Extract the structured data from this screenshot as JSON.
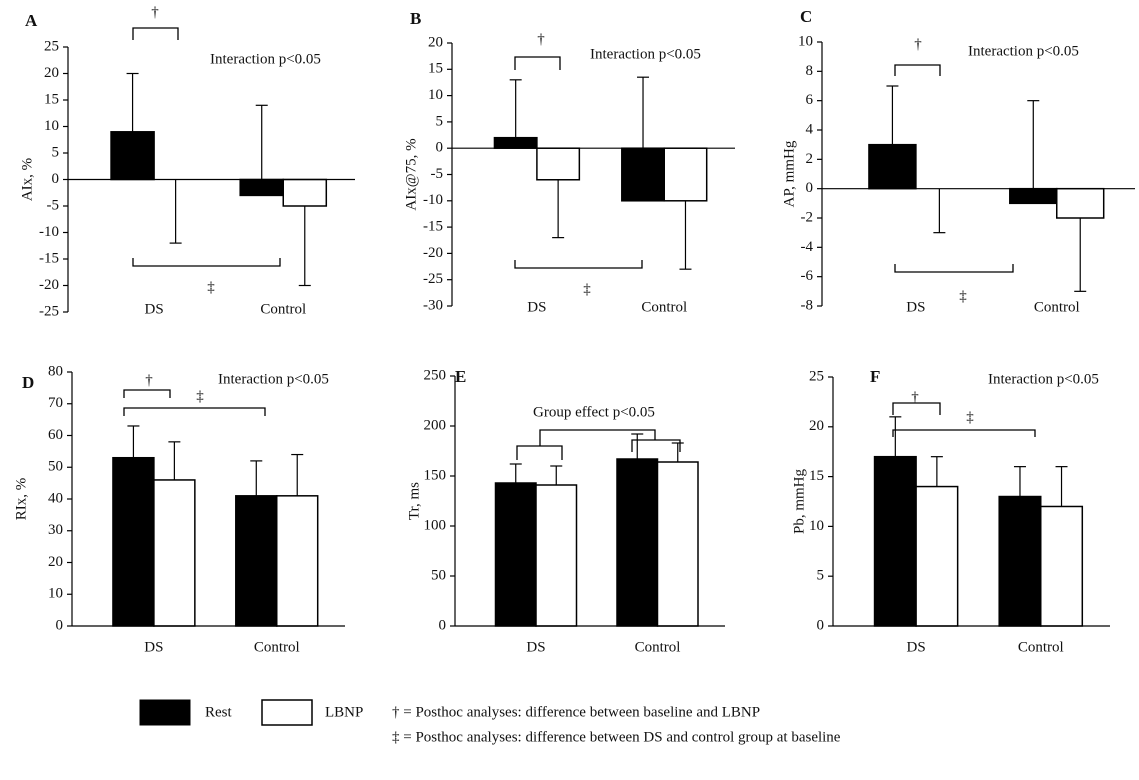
{
  "chart_data": [
    {
      "type": "bar",
      "panel": "A",
      "ylabel": "AIx, %",
      "categories": [
        "DS",
        "Control"
      ],
      "series": [
        {
          "name": "Rest",
          "color": "#000000",
          "values": [
            9,
            -3
          ],
          "errors": [
            11,
            17
          ],
          "error_side": "up"
        },
        {
          "name": "LBNP",
          "color": "#ffffff",
          "values": [
            0,
            -5
          ],
          "errors": [
            12,
            15
          ],
          "error_side": "down"
        }
      ],
      "ylim": [
        -25,
        25
      ],
      "yticks": [
        -25,
        -20,
        -15,
        -10,
        -5,
        0,
        5,
        10,
        15,
        20,
        25
      ],
      "annotations": [
        "Interaction p<0.05",
        "†",
        "‡"
      ]
    },
    {
      "type": "bar",
      "panel": "B",
      "ylabel": "AIx@75, %",
      "categories": [
        "DS",
        "Control"
      ],
      "series": [
        {
          "name": "Rest",
          "color": "#000000",
          "values": [
            2,
            -10
          ],
          "errors": [
            11,
            23.5
          ],
          "error_side": "up"
        },
        {
          "name": "LBNP",
          "color": "#ffffff",
          "values": [
            -6,
            -10
          ],
          "errors": [
            11,
            13
          ],
          "error_side": "down"
        }
      ],
      "ylim": [
        -30,
        20
      ],
      "yticks": [
        -30,
        -25,
        -20,
        -15,
        -10,
        -5,
        0,
        5,
        10,
        15,
        20
      ],
      "annotations": [
        "Interaction p<0.05",
        "†",
        "‡"
      ]
    },
    {
      "type": "bar",
      "panel": "C",
      "ylabel": "AP, mmHg",
      "categories": [
        "DS",
        "Control"
      ],
      "series": [
        {
          "name": "Rest",
          "color": "#000000",
          "values": [
            3,
            -1
          ],
          "errors": [
            4,
            7
          ],
          "error_side": "up"
        },
        {
          "name": "LBNP",
          "color": "#ffffff",
          "values": [
            0,
            -2
          ],
          "errors": [
            3,
            5
          ],
          "error_side": "down"
        }
      ],
      "ylim": [
        -8,
        10
      ],
      "yticks": [
        -8,
        -6,
        -4,
        -2,
        0,
        2,
        4,
        6,
        8,
        10
      ],
      "annotations": [
        "Interaction p<0.05",
        "†",
        "‡"
      ]
    },
    {
      "type": "bar",
      "panel": "D",
      "ylabel": "RIx, %",
      "categories": [
        "DS",
        "Control"
      ],
      "series": [
        {
          "name": "Rest",
          "color": "#000000",
          "values": [
            53,
            41
          ],
          "errors": [
            10,
            11
          ],
          "error_side": "up"
        },
        {
          "name": "LBNP",
          "color": "#ffffff",
          "values": [
            46,
            41
          ],
          "errors": [
            12,
            13
          ],
          "error_side": "up"
        }
      ],
      "ylim": [
        0,
        80
      ],
      "yticks": [
        0,
        10,
        20,
        30,
        40,
        50,
        60,
        70,
        80
      ],
      "annotations": [
        "Interaction p<0.05",
        "†",
        "‡"
      ]
    },
    {
      "type": "bar",
      "panel": "E",
      "ylabel": "Tr, ms",
      "categories": [
        "DS",
        "Control"
      ],
      "series": [
        {
          "name": "Rest",
          "color": "#000000",
          "values": [
            143,
            167
          ],
          "errors": [
            19,
            25
          ],
          "error_side": "up"
        },
        {
          "name": "LBNP",
          "color": "#ffffff",
          "values": [
            141,
            164
          ],
          "errors": [
            19,
            19
          ],
          "error_side": "up"
        }
      ],
      "ylim": [
        0,
        250
      ],
      "yticks": [
        0,
        50,
        100,
        150,
        200,
        250
      ],
      "annotations": [
        "Group effect p<0.05"
      ]
    },
    {
      "type": "bar",
      "panel": "F",
      "ylabel": "Pb, mmHg",
      "categories": [
        "DS",
        "Control"
      ],
      "series": [
        {
          "name": "Rest",
          "color": "#000000",
          "values": [
            17,
            13
          ],
          "errors": [
            4,
            3
          ],
          "error_side": "up"
        },
        {
          "name": "LBNP",
          "color": "#ffffff",
          "values": [
            14,
            12
          ],
          "errors": [
            3,
            4
          ],
          "error_side": "up"
        }
      ],
      "ylim": [
        0,
        25
      ],
      "yticks": [
        0,
        5,
        10,
        15,
        20,
        25
      ],
      "annotations": [
        "Interaction p<0.05",
        "†",
        "‡"
      ]
    }
  ],
  "footnotes": [
    "† = Posthoc analyses: difference between baseline and LBNP",
    "‡ = Posthoc analyses: difference between DS and control group at baseline"
  ]
}
